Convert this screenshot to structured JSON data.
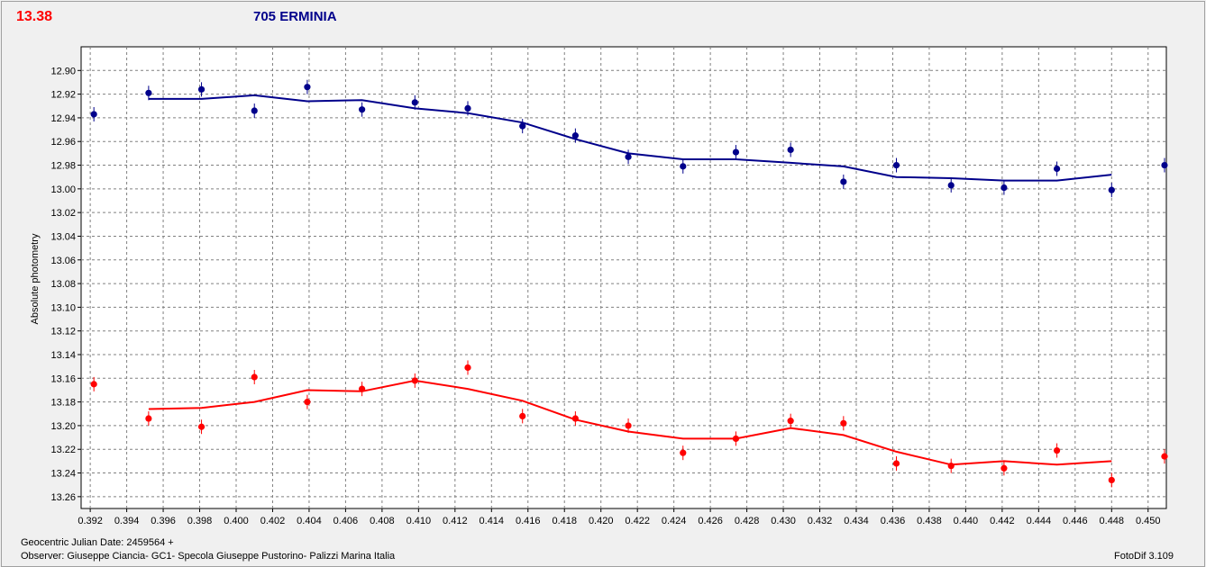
{
  "header": {
    "magnitude": "13.38",
    "object_name": "705 ERMINIA"
  },
  "footer": {
    "jd_line": "Geocentric Julian Date: 2459564 +",
    "observer_line": "Observer: Giuseppe Ciancia- GC1- Specola Giuseppe Pustorino- Palizzi Marina Italia",
    "software": "FotoDif 3.109"
  },
  "chart_data": {
    "type": "scatter",
    "ylabel": "Absolute photometry",
    "xlim": [
      0.3915,
      0.451
    ],
    "ylim": [
      13.27,
      12.88
    ],
    "y_inverted": true,
    "grid": true,
    "x_ticks": [
      "0.392",
      "0.394",
      "0.396",
      "0.398",
      "0.400",
      "0.402",
      "0.404",
      "0.406",
      "0.408",
      "0.410",
      "0.412",
      "0.414",
      "0.416",
      "0.418",
      "0.420",
      "0.422",
      "0.424",
      "0.426",
      "0.428",
      "0.430",
      "0.432",
      "0.434",
      "0.436",
      "0.438",
      "0.440",
      "0.442",
      "0.444",
      "0.446",
      "0.448",
      "0.450"
    ],
    "y_ticks": [
      "12.90",
      "12.92",
      "12.94",
      "12.96",
      "12.98",
      "13.00",
      "13.02",
      "13.04",
      "13.06",
      "13.08",
      "13.10",
      "13.12",
      "13.14",
      "13.16",
      "13.18",
      "13.20",
      "13.22",
      "13.24",
      "13.26"
    ],
    "series": [
      {
        "color": "#00008b",
        "points": [
          {
            "x": 0.3922,
            "y": 12.937
          },
          {
            "x": 0.3952,
            "y": 12.919
          },
          {
            "x": 0.3981,
            "y": 12.916
          },
          {
            "x": 0.401,
            "y": 12.934
          },
          {
            "x": 0.4039,
            "y": 12.914
          },
          {
            "x": 0.4069,
            "y": 12.933
          },
          {
            "x": 0.4098,
            "y": 12.927
          },
          {
            "x": 0.4127,
            "y": 12.932
          },
          {
            "x": 0.4157,
            "y": 12.947
          },
          {
            "x": 0.4186,
            "y": 12.955
          },
          {
            "x": 0.4215,
            "y": 12.973
          },
          {
            "x": 0.4245,
            "y": 12.981
          },
          {
            "x": 0.4274,
            "y": 12.969
          },
          {
            "x": 0.4304,
            "y": 12.967
          },
          {
            "x": 0.4333,
            "y": 12.994
          },
          {
            "x": 0.4362,
            "y": 12.98
          },
          {
            "x": 0.4392,
            "y": 12.997
          },
          {
            "x": 0.4421,
            "y": 12.999
          },
          {
            "x": 0.445,
            "y": 12.983
          },
          {
            "x": 0.448,
            "y": 13.001
          },
          {
            "x": 0.4509,
            "y": 12.98
          }
        ],
        "fit": [
          {
            "x": 0.3952,
            "y": 12.924
          },
          {
            "x": 0.3981,
            "y": 12.924
          },
          {
            "x": 0.401,
            "y": 12.921
          },
          {
            "x": 0.4039,
            "y": 12.926
          },
          {
            "x": 0.4069,
            "y": 12.925
          },
          {
            "x": 0.4098,
            "y": 12.932
          },
          {
            "x": 0.4127,
            "y": 12.936
          },
          {
            "x": 0.4157,
            "y": 12.944
          },
          {
            "x": 0.4186,
            "y": 12.958
          },
          {
            "x": 0.4215,
            "y": 12.97
          },
          {
            "x": 0.4245,
            "y": 12.975
          },
          {
            "x": 0.4274,
            "y": 12.975
          },
          {
            "x": 0.4304,
            "y": 12.978
          },
          {
            "x": 0.4333,
            "y": 12.981
          },
          {
            "x": 0.4362,
            "y": 12.99
          },
          {
            "x": 0.4392,
            "y": 12.991
          },
          {
            "x": 0.4421,
            "y": 12.993
          },
          {
            "x": 0.445,
            "y": 12.993
          },
          {
            "x": 0.448,
            "y": 12.988
          }
        ]
      },
      {
        "color": "#ff0000",
        "points": [
          {
            "x": 0.3922,
            "y": 13.165
          },
          {
            "x": 0.3952,
            "y": 13.194
          },
          {
            "x": 0.3981,
            "y": 13.201
          },
          {
            "x": 0.401,
            "y": 13.159
          },
          {
            "x": 0.4039,
            "y": 13.18
          },
          {
            "x": 0.4069,
            "y": 13.169
          },
          {
            "x": 0.4098,
            "y": 13.162
          },
          {
            "x": 0.4127,
            "y": 13.151
          },
          {
            "x": 0.4157,
            "y": 13.192
          },
          {
            "x": 0.4186,
            "y": 13.194
          },
          {
            "x": 0.4215,
            "y": 13.2
          },
          {
            "x": 0.4245,
            "y": 13.223
          },
          {
            "x": 0.4274,
            "y": 13.211
          },
          {
            "x": 0.4304,
            "y": 13.196
          },
          {
            "x": 0.4333,
            "y": 13.198
          },
          {
            "x": 0.4362,
            "y": 13.232
          },
          {
            "x": 0.4392,
            "y": 13.234
          },
          {
            "x": 0.4421,
            "y": 13.236
          },
          {
            "x": 0.445,
            "y": 13.221
          },
          {
            "x": 0.448,
            "y": 13.246
          },
          {
            "x": 0.4509,
            "y": 13.226
          }
        ],
        "fit": [
          {
            "x": 0.3952,
            "y": 13.186
          },
          {
            "x": 0.3981,
            "y": 13.185
          },
          {
            "x": 0.401,
            "y": 13.18
          },
          {
            "x": 0.4039,
            "y": 13.17
          },
          {
            "x": 0.4069,
            "y": 13.171
          },
          {
            "x": 0.4098,
            "y": 13.162
          },
          {
            "x": 0.4127,
            "y": 13.169
          },
          {
            "x": 0.4157,
            "y": 13.179
          },
          {
            "x": 0.4186,
            "y": 13.195
          },
          {
            "x": 0.4215,
            "y": 13.205
          },
          {
            "x": 0.4245,
            "y": 13.211
          },
          {
            "x": 0.4274,
            "y": 13.211
          },
          {
            "x": 0.4304,
            "y": 13.202
          },
          {
            "x": 0.4333,
            "y": 13.208
          },
          {
            "x": 0.4362,
            "y": 13.222
          },
          {
            "x": 0.4392,
            "y": 13.233
          },
          {
            "x": 0.4421,
            "y": 13.23
          },
          {
            "x": 0.445,
            "y": 13.233
          },
          {
            "x": 0.448,
            "y": 13.23
          }
        ]
      }
    ]
  }
}
